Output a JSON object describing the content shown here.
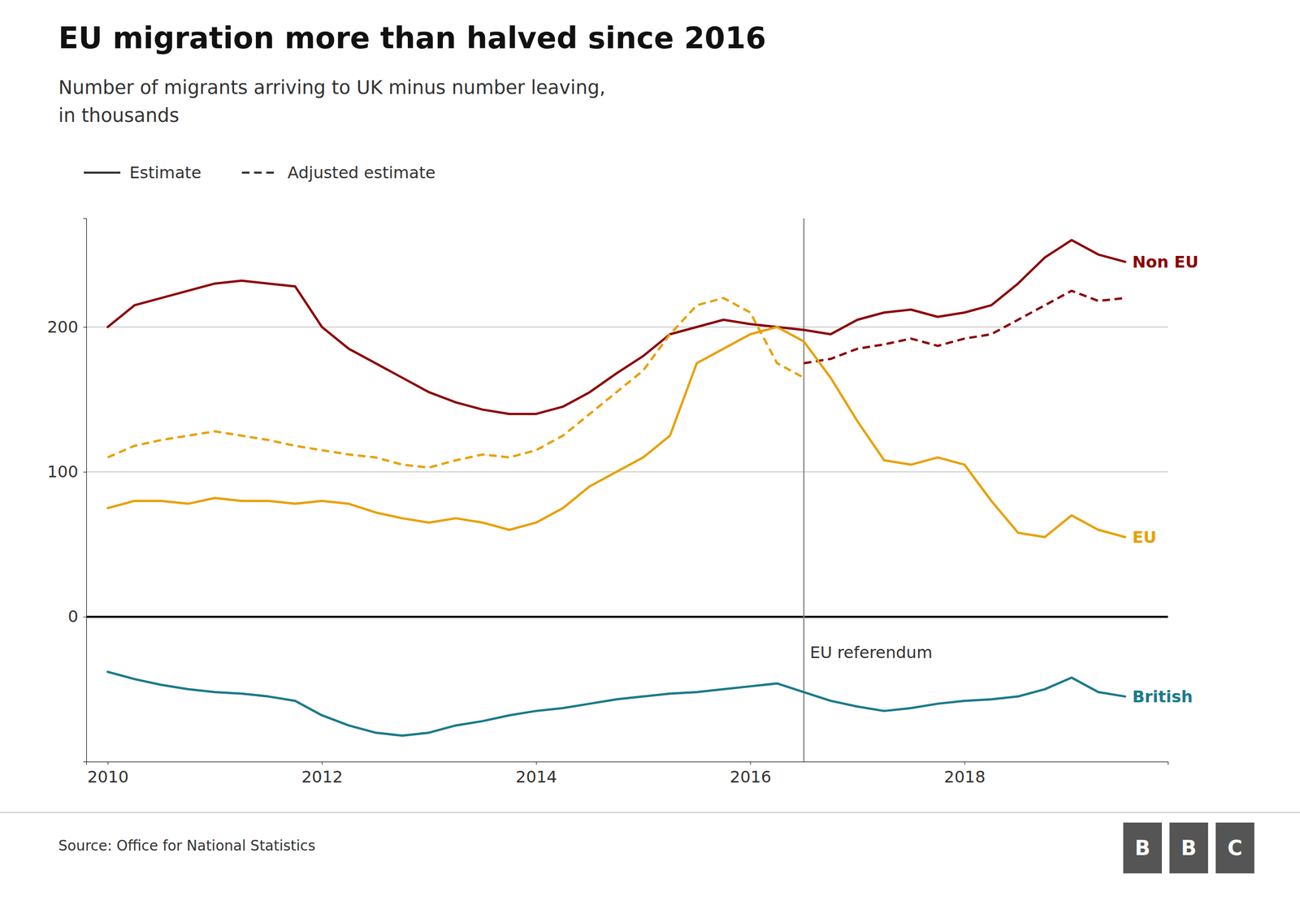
{
  "chart_data": {
    "type": "line",
    "title": "EU migration more than halved since 2016",
    "subtitle": "Number of migrants arriving to UK minus number leaving,\nin thousands",
    "source": "Source: Office for National Statistics",
    "logo": [
      "B",
      "B",
      "C"
    ],
    "legend": "top left",
    "legend_entries": [
      {
        "name": "Estimate",
        "line_style": "solid"
      },
      {
        "name": "Adjusted estimate",
        "line_style": "dashed"
      }
    ],
    "annotations": [
      {
        "text": "EU referendum",
        "x": 2016.5
      }
    ],
    "grid": true,
    "xlim": [
      2009.8,
      2019.9
    ],
    "xticks": [
      2010,
      2012,
      2014,
      2016,
      2018
    ],
    "ylim": [
      -100,
      275
    ],
    "yticks": [
      0,
      100,
      200
    ],
    "series": [
      {
        "name": "Non EU",
        "color": "#8B0000",
        "line_style": "solid",
        "x": [
          2010.0,
          2010.25,
          2010.5,
          2010.75,
          2011.0,
          2011.25,
          2011.5,
          2011.75,
          2012.0,
          2012.25,
          2012.5,
          2012.75,
          2013.0,
          2013.25,
          2013.5,
          2013.75,
          2014.0,
          2014.25,
          2014.5,
          2014.75,
          2015.0,
          2015.25,
          2015.5,
          2015.75,
          2016.0,
          2016.25,
          2016.5,
          2016.75,
          2017.0,
          2017.25,
          2017.5,
          2017.75,
          2018.0,
          2018.25,
          2018.5,
          2018.75,
          2019.0,
          2019.25,
          2019.5
        ],
        "values": [
          200,
          215,
          220,
          225,
          230,
          232,
          230,
          228,
          200,
          185,
          175,
          165,
          155,
          148,
          143,
          140,
          140,
          145,
          155,
          168,
          180,
          195,
          200,
          205,
          202,
          200,
          198,
          195,
          205,
          210,
          212,
          207,
          210,
          215,
          230,
          248,
          260,
          250,
          245
        ]
      },
      {
        "color": "#8B0000",
        "line_style": "dashed",
        "x": [
          2016.5,
          2016.75,
          2017.0,
          2017.25,
          2017.5,
          2017.75,
          2018.0,
          2018.25,
          2018.5,
          2018.75,
          2019.0,
          2019.25,
          2019.5
        ],
        "values": [
          175,
          178,
          185,
          188,
          192,
          187,
          192,
          195,
          205,
          215,
          225,
          218,
          220
        ]
      },
      {
        "name": "EU",
        "color": "#E8A000",
        "line_style": "solid",
        "x": [
          2010.0,
          2010.25,
          2010.5,
          2010.75,
          2011.0,
          2011.25,
          2011.5,
          2011.75,
          2012.0,
          2012.25,
          2012.5,
          2012.75,
          2013.0,
          2013.25,
          2013.5,
          2013.75,
          2014.0,
          2014.25,
          2014.5,
          2014.75,
          2015.0,
          2015.25,
          2015.5,
          2015.75,
          2016.0,
          2016.25,
          2016.5,
          2016.75,
          2017.0,
          2017.25,
          2017.5,
          2017.75,
          2018.0,
          2018.25,
          2018.5,
          2018.75,
          2019.0,
          2019.25,
          2019.5
        ],
        "values": [
          75,
          80,
          80,
          78,
          82,
          80,
          80,
          78,
          80,
          78,
          72,
          68,
          65,
          68,
          65,
          60,
          65,
          75,
          90,
          100,
          110,
          125,
          175,
          185,
          195,
          200,
          190,
          165,
          135,
          108,
          105,
          110,
          105,
          80,
          58,
          55,
          70,
          60,
          55
        ]
      },
      {
        "color": "#E8A000",
        "line_style": "dashed",
        "x": [
          2010.0,
          2010.25,
          2010.5,
          2010.75,
          2011.0,
          2011.25,
          2011.5,
          2011.75,
          2012.0,
          2012.25,
          2012.5,
          2012.75,
          2013.0,
          2013.25,
          2013.5,
          2013.75,
          2014.0,
          2014.25,
          2014.5,
          2014.75,
          2015.0,
          2015.25,
          2015.5,
          2015.75,
          2016.0,
          2016.25,
          2016.5
        ],
        "values": [
          110,
          118,
          122,
          125,
          128,
          125,
          122,
          118,
          115,
          112,
          110,
          105,
          103,
          108,
          112,
          110,
          115,
          125,
          140,
          155,
          170,
          195,
          215,
          220,
          210,
          175,
          165
        ]
      },
      {
        "name": "British",
        "color": "#1a7a8a",
        "line_style": "solid",
        "x": [
          2010.0,
          2010.25,
          2010.5,
          2010.75,
          2011.0,
          2011.25,
          2011.5,
          2011.75,
          2012.0,
          2012.25,
          2012.5,
          2012.75,
          2013.0,
          2013.25,
          2013.5,
          2013.75,
          2014.0,
          2014.25,
          2014.5,
          2014.75,
          2015.0,
          2015.25,
          2015.5,
          2015.75,
          2016.0,
          2016.25,
          2016.5,
          2016.75,
          2017.0,
          2017.25,
          2017.5,
          2017.75,
          2018.0,
          2018.25,
          2018.5,
          2018.75,
          2019.0,
          2019.25,
          2019.5
        ],
        "values": [
          -38,
          -43,
          -47,
          -50,
          -52,
          -53,
          -55,
          -58,
          -68,
          -75,
          -80,
          -82,
          -80,
          -75,
          -72,
          -68,
          -65,
          -63,
          -60,
          -57,
          -55,
          -53,
          -52,
          -50,
          -48,
          -46,
          -52,
          -58,
          -62,
          -65,
          -63,
          -60,
          -58,
          -57,
          -55,
          -50,
          -42,
          -52,
          -55
        ]
      }
    ]
  }
}
